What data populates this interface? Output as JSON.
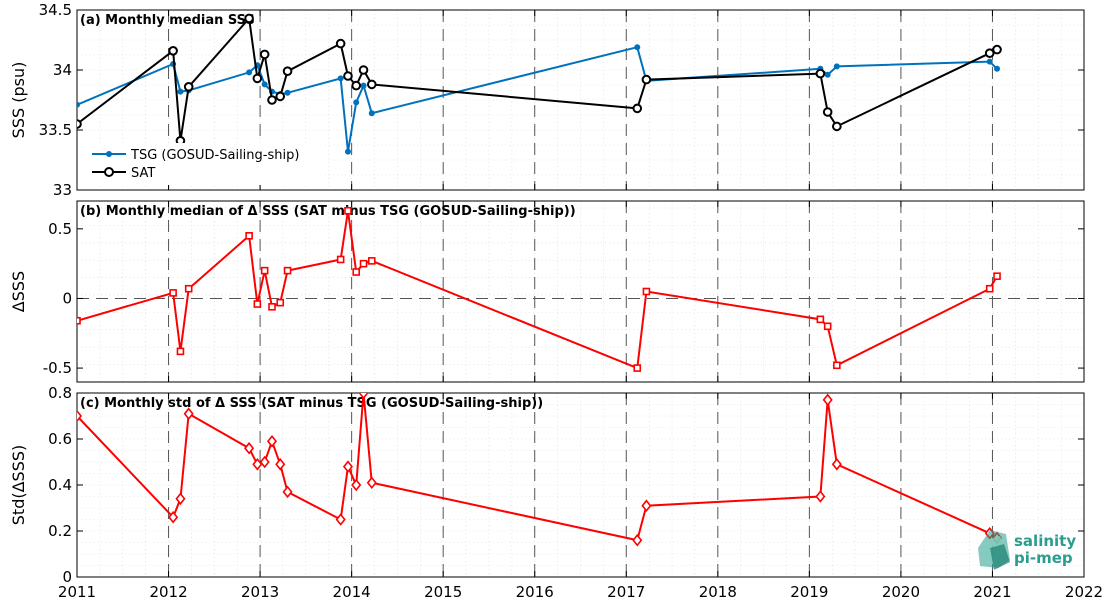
{
  "chart_data": [
    {
      "panel": "a",
      "type": "line",
      "title": "(a) Monthly median SSS",
      "ylabel": "SSS (psu)",
      "xlim": [
        2011,
        2022
      ],
      "ylim": [
        33,
        34.5
      ],
      "yticks": [
        33,
        33.5,
        34,
        34.5
      ],
      "grid": true,
      "legend_position": "lower-left",
      "series": [
        {
          "name": "TSG (GOSUD-Sailing-ship)",
          "color": "#0072BD",
          "marker": "dot",
          "x": [
            2011.0,
            2012.05,
            2012.13,
            2012.22,
            2012.88,
            2012.97,
            2013.05,
            2013.13,
            2013.22,
            2013.3,
            2013.88,
            2013.96,
            2014.05,
            2014.13,
            2014.22,
            2017.12,
            2017.22,
            2019.12,
            2019.2,
            2019.3,
            2020.97,
            2021.05
          ],
          "y": [
            33.71,
            34.05,
            33.82,
            33.83,
            33.98,
            34.04,
            33.88,
            33.82,
            33.8,
            33.81,
            33.93,
            33.32,
            33.73,
            33.87,
            33.64,
            34.19,
            33.91,
            34.01,
            33.96,
            34.03,
            34.07,
            34.01
          ]
        },
        {
          "name": "SAT",
          "color": "#000000",
          "marker": "circle",
          "x": [
            2011.0,
            2012.05,
            2012.13,
            2012.22,
            2012.88,
            2012.97,
            2013.05,
            2013.13,
            2013.22,
            2013.3,
            2013.88,
            2013.96,
            2014.05,
            2014.13,
            2014.22,
            2017.12,
            2017.22,
            2019.12,
            2019.2,
            2019.3,
            2020.97,
            2021.05
          ],
          "y": [
            33.55,
            34.16,
            33.41,
            33.86,
            34.43,
            33.93,
            34.13,
            33.75,
            33.78,
            33.99,
            34.22,
            33.95,
            33.87,
            34.0,
            33.88,
            33.68,
            33.92,
            33.97,
            33.65,
            33.53,
            34.14,
            34.17
          ]
        }
      ]
    },
    {
      "panel": "b",
      "type": "line",
      "title": "(b) Monthly median of Δ SSS (SAT minus TSG (GOSUD-Sailing-ship))",
      "ylabel": "ΔSSS",
      "xlim": [
        2011,
        2022
      ],
      "ylim": [
        -0.6,
        0.7
      ],
      "yticks": [
        -0.5,
        0,
        0.5
      ],
      "grid": true,
      "zero_line": true,
      "series": [
        {
          "name": "",
          "color": "#FF0000",
          "marker": "square",
          "x": [
            2011.0,
            2012.05,
            2012.13,
            2012.22,
            2012.88,
            2012.97,
            2013.05,
            2013.13,
            2013.22,
            2013.3,
            2013.88,
            2013.96,
            2014.05,
            2014.13,
            2014.22,
            2017.12,
            2017.22,
            2019.12,
            2019.2,
            2019.3,
            2020.97,
            2021.05
          ],
          "y": [
            -0.16,
            0.04,
            -0.38,
            0.07,
            0.45,
            -0.04,
            0.2,
            -0.06,
            -0.03,
            0.2,
            0.28,
            0.63,
            0.19,
            0.25,
            0.27,
            -0.5,
            0.05,
            -0.15,
            -0.2,
            -0.48,
            0.07,
            0.16
          ]
        }
      ]
    },
    {
      "panel": "c",
      "type": "line",
      "title": "(c) Monthly std of Δ SSS (SAT minus TSG (GOSUD-Sailing-ship))",
      "ylabel": "Std(ΔSSS)",
      "xlim": [
        2011,
        2022
      ],
      "ylim": [
        0,
        0.8
      ],
      "yticks": [
        0,
        0.2,
        0.4,
        0.6,
        0.8
      ],
      "xticks": [
        2011,
        2012,
        2013,
        2014,
        2015,
        2016,
        2017,
        2018,
        2019,
        2020,
        2021,
        2022
      ],
      "grid": true,
      "series": [
        {
          "name": "",
          "color": "#FF0000",
          "marker": "diamond",
          "x": [
            2011.0,
            2012.05,
            2012.13,
            2012.22,
            2012.88,
            2012.97,
            2013.05,
            2013.13,
            2013.22,
            2013.3,
            2013.88,
            2013.96,
            2014.05,
            2014.13,
            2014.22,
            2017.12,
            2017.22,
            2019.12,
            2019.2,
            2019.3,
            2020.97,
            2021.05
          ],
          "y": [
            0.7,
            0.26,
            0.34,
            0.71,
            0.56,
            0.49,
            0.5,
            0.59,
            0.49,
            0.37,
            0.25,
            0.48,
            0.4,
            0.8,
            0.41,
            0.16,
            0.31,
            0.35,
            0.77,
            0.49,
            0.19,
            0.17
          ]
        }
      ]
    }
  ],
  "logo": {
    "line1": "salinity",
    "line2": "pi-mep"
  }
}
